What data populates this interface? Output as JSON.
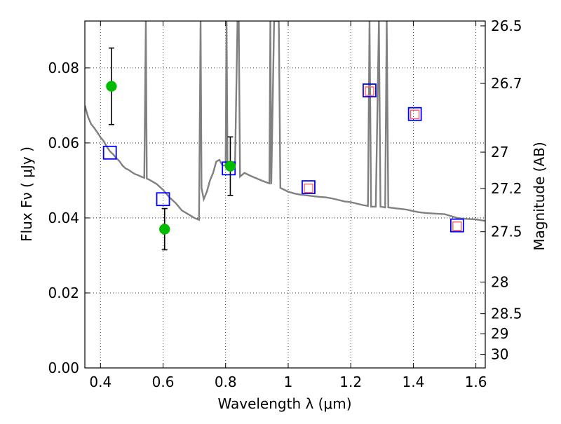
{
  "chart_data": {
    "type": "scatter",
    "xlabel": "Wavelength  λ (μm)",
    "ylabel": "Flux  Fν  ( μJy )",
    "ylabel_right": "Magnitude (AB)",
    "xlim": [
      0.35,
      1.63
    ],
    "ylim": [
      0.0,
      0.0925
    ],
    "grid": true,
    "x_ticks": [
      0.4,
      0.6,
      0.8,
      1.0,
      1.2,
      1.4,
      1.6
    ],
    "x_tick_labels": [
      "0.4",
      "0.6",
      "0.8",
      "1",
      "1.2",
      "1.4",
      "1.6"
    ],
    "y_ticks": [
      0.0,
      0.02,
      0.04,
      0.06,
      0.08
    ],
    "y_tick_labels": [
      "0.00",
      "0.02",
      "0.04",
      "0.06",
      "0.08"
    ],
    "mag_ticks": [
      26.5,
      26.7,
      27,
      27.2,
      27.5,
      28,
      28.5,
      29,
      30
    ],
    "mag_tick_labels": [
      "26.5",
      "26.7",
      "27",
      "27.2",
      "27.5",
      "28",
      "28.5",
      "29",
      "30"
    ],
    "series": [
      {
        "kind": "model-spectrum",
        "color": "#808080",
        "points": [
          [
            0.35,
            0.07
          ],
          [
            0.36,
            0.067
          ],
          [
            0.37,
            0.065
          ],
          [
            0.38,
            0.064
          ],
          [
            0.39,
            0.0628
          ],
          [
            0.4,
            0.0615
          ],
          [
            0.41,
            0.0605
          ],
          [
            0.42,
            0.059
          ],
          [
            0.43,
            0.0578
          ],
          [
            0.44,
            0.057
          ],
          [
            0.45,
            0.056
          ],
          [
            0.46,
            0.0552
          ],
          [
            0.47,
            0.054
          ],
          [
            0.48,
            0.0532
          ],
          [
            0.49,
            0.0528
          ],
          [
            0.5,
            0.0522
          ],
          [
            0.51,
            0.0517
          ],
          [
            0.52,
            0.0514
          ],
          [
            0.53,
            0.051
          ],
          [
            0.54,
            0.0507
          ],
          [
            0.545,
            0.0925
          ],
          [
            0.548,
            0.0505
          ],
          [
            0.56,
            0.05
          ],
          [
            0.58,
            0.049
          ],
          [
            0.6,
            0.0475
          ],
          [
            0.62,
            0.0455
          ],
          [
            0.64,
            0.044
          ],
          [
            0.66,
            0.042
          ],
          [
            0.68,
            0.041
          ],
          [
            0.7,
            0.04
          ],
          [
            0.715,
            0.0395
          ],
          [
            0.72,
            0.0925
          ],
          [
            0.723,
            0.048
          ],
          [
            0.73,
            0.045
          ],
          [
            0.74,
            0.047
          ],
          [
            0.75,
            0.05
          ],
          [
            0.76,
            0.052
          ],
          [
            0.77,
            0.055
          ],
          [
            0.78,
            0.0555
          ],
          [
            0.79,
            0.054
          ],
          [
            0.8,
            0.054
          ],
          [
            0.803,
            0.0925
          ],
          [
            0.806,
            0.0545
          ],
          [
            0.82,
            0.053
          ],
          [
            0.83,
            0.054
          ],
          [
            0.838,
            0.0925
          ],
          [
            0.842,
            0.0925
          ],
          [
            0.846,
            0.051
          ],
          [
            0.86,
            0.052
          ],
          [
            0.88,
            0.0512
          ],
          [
            0.9,
            0.0505
          ],
          [
            0.92,
            0.0498
          ],
          [
            0.94,
            0.0492
          ],
          [
            0.943,
            0.0925
          ],
          [
            0.946,
            0.049
          ],
          [
            0.955,
            0.0925
          ],
          [
            0.96,
            0.0925
          ],
          [
            0.965,
            0.0925
          ],
          [
            0.97,
            0.0925
          ],
          [
            0.975,
            0.048
          ],
          [
            1.0,
            0.047
          ],
          [
            1.02,
            0.0465
          ],
          [
            1.04,
            0.0462
          ],
          [
            1.06,
            0.046
          ],
          [
            1.08,
            0.0458
          ],
          [
            1.1,
            0.0456
          ],
          [
            1.12,
            0.0455
          ],
          [
            1.14,
            0.0452
          ],
          [
            1.16,
            0.0448
          ],
          [
            1.18,
            0.0444
          ],
          [
            1.2,
            0.0442
          ],
          [
            1.22,
            0.0438
          ],
          [
            1.24,
            0.0434
          ],
          [
            1.255,
            0.0432
          ],
          [
            1.26,
            0.0925
          ],
          [
            1.265,
            0.043
          ],
          [
            1.28,
            0.043
          ],
          [
            1.29,
            0.0925
          ],
          [
            1.295,
            0.043
          ],
          [
            1.31,
            0.0428
          ],
          [
            1.315,
            0.0925
          ],
          [
            1.32,
            0.0428
          ],
          [
            1.34,
            0.0426
          ],
          [
            1.36,
            0.0424
          ],
          [
            1.38,
            0.0422
          ],
          [
            1.4,
            0.0418
          ],
          [
            1.42,
            0.0415
          ],
          [
            1.44,
            0.0413
          ],
          [
            1.46,
            0.0412
          ],
          [
            1.48,
            0.0411
          ],
          [
            1.5,
            0.041
          ],
          [
            1.52,
            0.0405
          ],
          [
            1.54,
            0.04
          ],
          [
            1.56,
            0.0398
          ],
          [
            1.58,
            0.0397
          ],
          [
            1.6,
            0.0396
          ],
          [
            1.63,
            0.0392
          ]
        ]
      },
      {
        "kind": "model-photometry-blue-square",
        "color": "#0000ff",
        "x": [
          0.43,
          0.6,
          0.81,
          1.065,
          1.26,
          1.405,
          1.54
        ],
        "y": [
          0.0574,
          0.045,
          0.0532,
          0.0482,
          0.074,
          0.0677,
          0.038
        ]
      },
      {
        "kind": "model-photometry-red-square",
        "color": "#ff6060",
        "x": [
          1.065,
          1.26,
          1.405,
          1.54
        ],
        "y": [
          0.0479,
          0.0738,
          0.0676,
          0.0378
        ]
      },
      {
        "kind": "observed-green-circles",
        "color": "#00bb00",
        "x": [
          0.435,
          0.605,
          0.815
        ],
        "y": [
          0.0751,
          0.037,
          0.0538
        ],
        "err_low": [
          0.0102,
          0.0055,
          0.0078
        ],
        "err_high": [
          0.0102,
          0.0055,
          0.0078
        ]
      }
    ]
  }
}
